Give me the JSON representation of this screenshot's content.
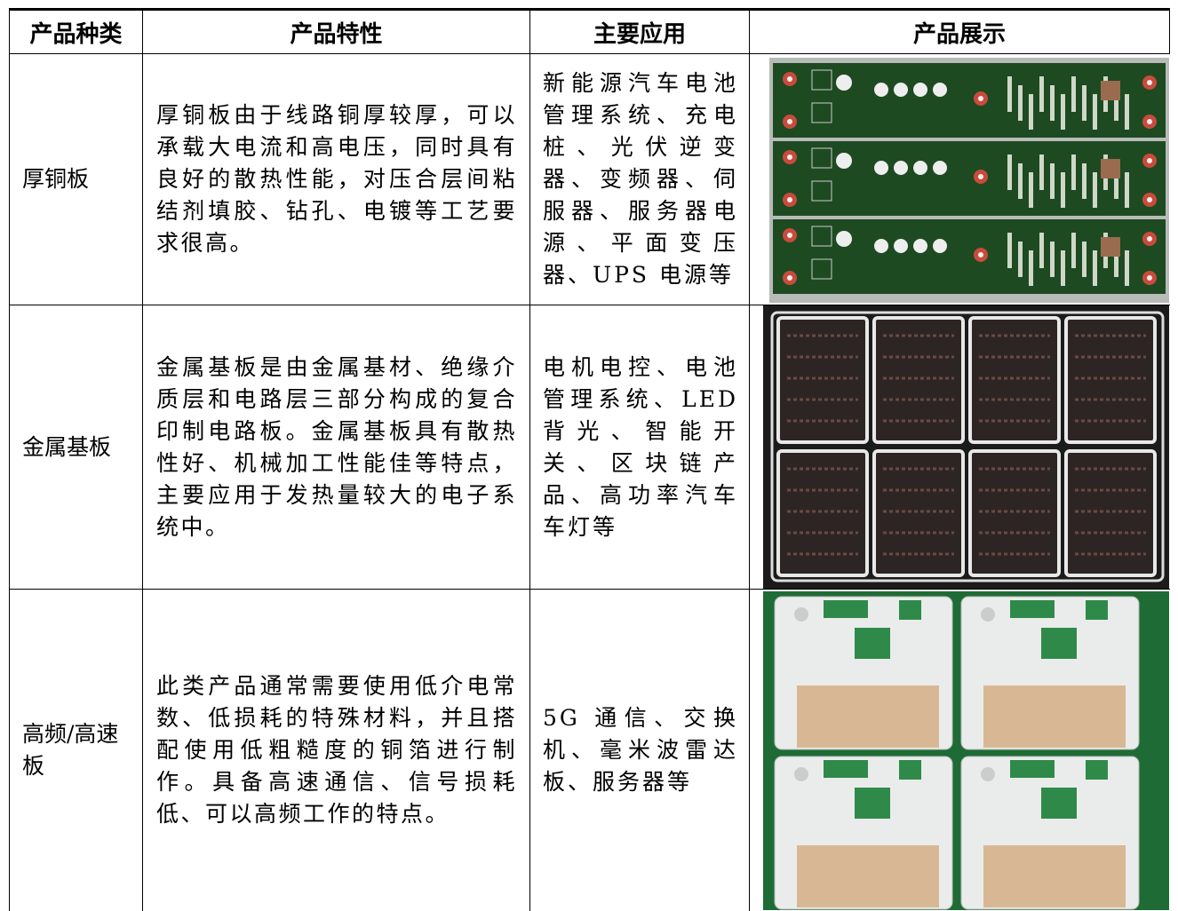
{
  "table": {
    "headers": [
      "产品种类",
      "产品特性",
      "主要应用",
      "产品展示"
    ],
    "rows": [
      [
        "厚铜板",
        "厚铜板由于线路铜厚较厚，可以承载大电流和高电压，同时具有良好的散热性能，对压合层间粘结剂填胶、钻孔、电镀等工艺要求很高。",
        "新能源汽车电池管理系统、充电桩、光伏逆变器、变频器、伺服器、服务器电源、平面变压器、UPS 电源等"
      ],
      [
        "金属基板",
        "金属基板是由金属基材、绝缘介质层和电路层三部分构成的复合印制电路板。金属基板具有散热性好、机械加工性能佳等特点，主要应用于发热量较大的电子系统中。",
        "电机电控、电池管理系统、LED 背光、智能开关、区块链产品、高功率汽车车灯等"
      ],
      [
        "高频/高速板",
        "此类产品通常需要使用低介电常数、低损耗的特殊材料，并且搭配使用低粗糙度的铜箔进行制作。具备高速通信、信号损耗低、可以高频工作的特点。",
        "5G 通信、交换机、毫米波雷达板、服务器等"
      ]
    ]
  }
}
